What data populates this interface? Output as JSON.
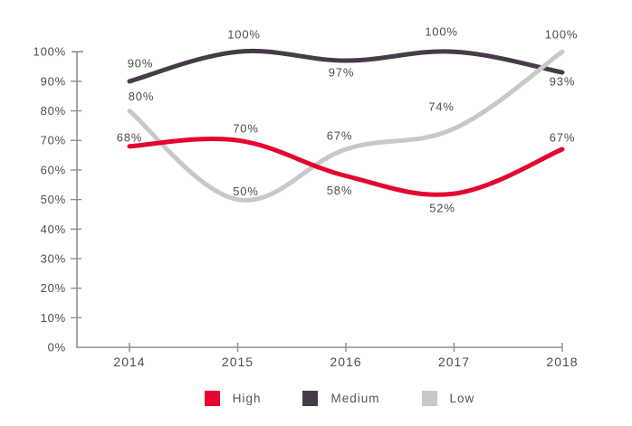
{
  "colors": {
    "axis": "#8f8f8f",
    "text": "#4d4d4d",
    "high": "#e4042e",
    "medium": "#453c48",
    "low": "#c8c8c8",
    "background": "#ffffff"
  },
  "chart_data": {
    "type": "line",
    "title": "",
    "xlabel": "",
    "ylabel": "",
    "grid": false,
    "legend_position": "bottom",
    "x": [
      2014,
      2015,
      2016,
      2017,
      2018
    ],
    "x_ticks": [
      "2014",
      "2015",
      "2016",
      "2017",
      "2018"
    ],
    "y_ticks": [
      "0%",
      "10%",
      "20%",
      "30%",
      "40%",
      "50%",
      "60%",
      "70%",
      "80%",
      "90%",
      "100%"
    ],
    "ylim": [
      0,
      100
    ],
    "series": [
      {
        "name": "High",
        "color": "#e4042e",
        "values": [
          68,
          70,
          58,
          52,
          67
        ],
        "labels": [
          "68%",
          "70%",
          "58%",
          "52%",
          "67%"
        ],
        "label_offsets": [
          [
            0,
            -10
          ],
          [
            9,
            -13
          ],
          [
            -7,
            16
          ],
          [
            -13,
            16
          ],
          [
            0,
            -13
          ]
        ]
      },
      {
        "name": "Medium",
        "color": "#453c48",
        "values": [
          90,
          100,
          97,
          100,
          93
        ],
        "labels": [
          "90%",
          "100%",
          "97%",
          "100%",
          "93%"
        ],
        "label_offsets": [
          [
            12,
            -20
          ],
          [
            7,
            -19
          ],
          [
            -5,
            13
          ],
          [
            -14,
            -22
          ],
          [
            0,
            10
          ]
        ]
      },
      {
        "name": "Low",
        "color": "#c8c8c8",
        "values": [
          80,
          50,
          67,
          74,
          100
        ],
        "labels": [
          "80%",
          "50%",
          "67%",
          "74%",
          "100%"
        ],
        "label_offsets": [
          [
            13,
            -16
          ],
          [
            9,
            -9
          ],
          [
            -7,
            -15
          ],
          [
            -14,
            -24
          ],
          [
            -1,
            -19
          ]
        ]
      }
    ],
    "legend": [
      {
        "label": "High",
        "color": "#e4042e"
      },
      {
        "label": "Medium",
        "color": "#453c48"
      },
      {
        "label": "Low",
        "color": "#c8c8c8"
      }
    ]
  }
}
